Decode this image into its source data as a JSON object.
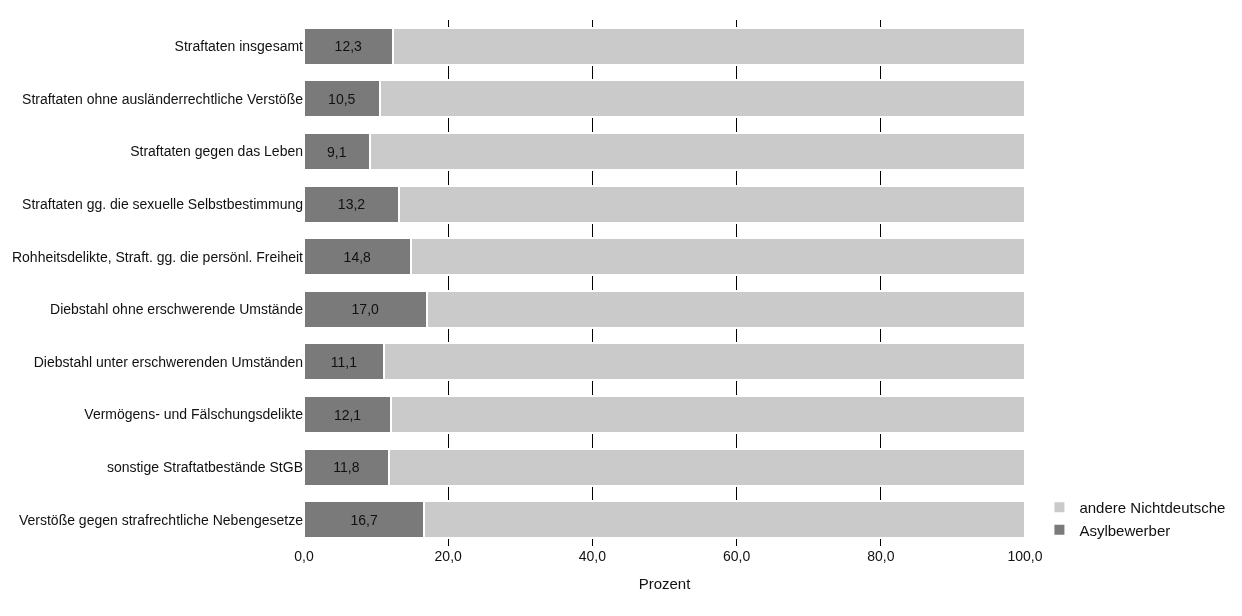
{
  "chart_data": {
    "type": "bar",
    "orientation": "horizontal",
    "stacked": true,
    "xlabel": "Prozent",
    "categories": [
      "Straftaten insgesamt",
      "Straftaten ohne ausländerrechtliche Verstöße",
      "Straftaten gegen das Leben",
      "Straftaten gg. die sexuelle Selbstbestimmung",
      "Rohheitsdelikte, Straft. gg. die persönl. Freiheit",
      "Diebstahl ohne erschwerende Umstände",
      "Diebstahl unter erschwerenden Umständen",
      "Vermögens- und Fälschungsdelikte",
      "sonstige Straftatbestände StGB",
      "Verstöße gegen strafrechtliche Nebengesetze"
    ],
    "series": [
      {
        "name": "Asylbewerber",
        "color": "#7a7a7a",
        "values": [
          12.3,
          10.5,
          9.1,
          13.2,
          14.8,
          17.0,
          11.1,
          12.1,
          11.8,
          16.7
        ],
        "value_labels": [
          "12,3",
          "10,5",
          "9,1",
          "13,2",
          "14,8",
          "17,0",
          "11,1",
          "12,1",
          "11,8",
          "16,7"
        ]
      },
      {
        "name": "andere Nichtdeutsche",
        "color": "#cacaca",
        "values": [
          87.7,
          89.5,
          90.9,
          86.8,
          85.2,
          83.0,
          88.9,
          87.9,
          88.2,
          83.3
        ]
      }
    ],
    "xlim": [
      0,
      100
    ],
    "xticks": [
      {
        "value": 0,
        "label": "0,0"
      },
      {
        "value": 20,
        "label": "20,0"
      },
      {
        "value": 40,
        "label": "40,0"
      },
      {
        "value": 60,
        "label": "60,0"
      },
      {
        "value": 80,
        "label": "80,0"
      },
      {
        "value": 100,
        "label": "100,0"
      }
    ],
    "grid": "x",
    "legend": "bottom right"
  }
}
